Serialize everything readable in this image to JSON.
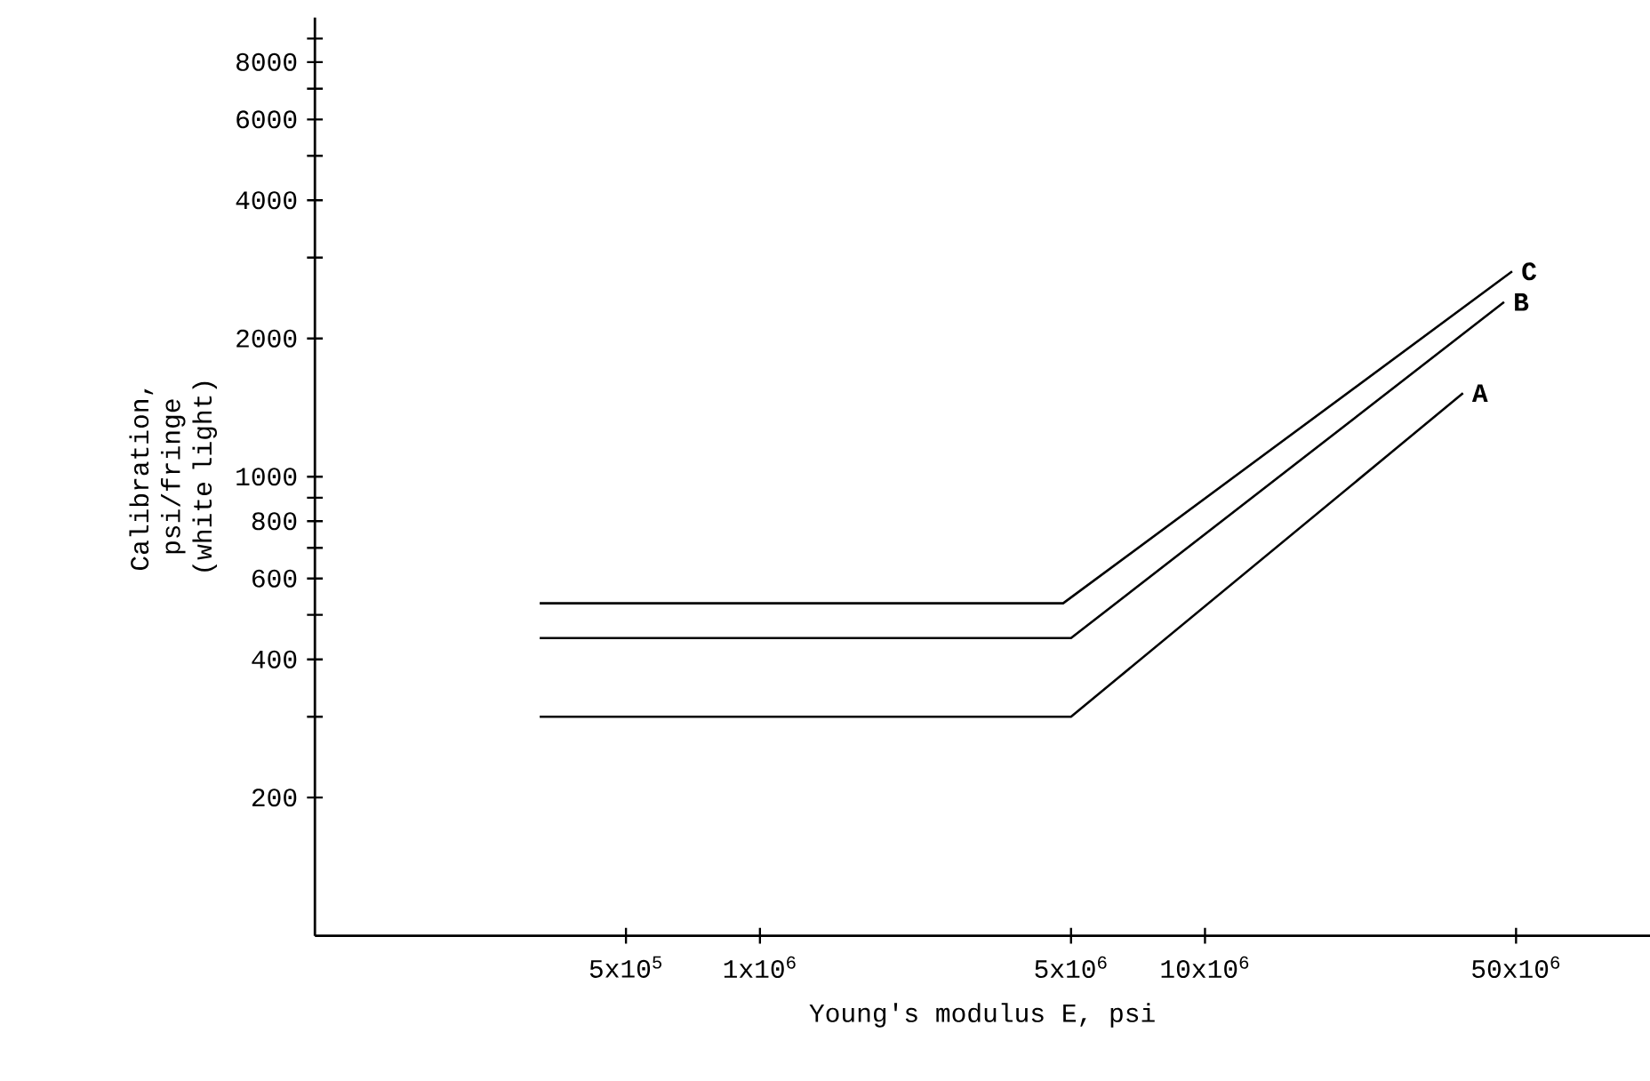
{
  "chart_data": {
    "type": "line",
    "xlabel": "Young's modulus E, psi",
    "ylabel": "Calibration, psi/fringe (white light)",
    "log": "xy",
    "xlim": [
      100000,
      100000000
    ],
    "ylim": [
      100,
      10000
    ],
    "xticks": [
      {
        "value": 500000,
        "label": "5x10$^{5}$"
      },
      {
        "value": 1000000,
        "label": "1x10$^{6}$"
      },
      {
        "value": 5000000,
        "label": "5x10$^{6}$"
      },
      {
        "value": 10000000,
        "label": "10x10$^{6}$"
      },
      {
        "value": 50000000,
        "label": "50x10$^{6}$"
      }
    ],
    "yticks": [
      200,
      {
        "value": 300,
        "label": null
      },
      400,
      {
        "value": 500,
        "label": null
      },
      600,
      {
        "value": 700,
        "label": null
      },
      800,
      {
        "value": 900,
        "label": null
      },
      1000,
      2000,
      {
        "value": 3000,
        "label": null
      },
      4000,
      {
        "value": 5000,
        "label": null
      },
      6000,
      {
        "value": 7000,
        "label": null
      },
      8000,
      {
        "value": 9000,
        "label": null
      }
    ],
    "series": [
      {
        "name": "C",
        "color": "#000000",
        "x": [
          320000,
          4800000,
          49000000
        ],
        "values": [
          530,
          530,
          2800
        ]
      },
      {
        "name": "B",
        "color": "#000000",
        "x": [
          320000,
          5000000,
          47000000
        ],
        "values": [
          445,
          445,
          2400
        ]
      },
      {
        "name": "A",
        "color": "#000000",
        "x": [
          320000,
          5000000,
          38000000
        ],
        "values": [
          300,
          300,
          1520
        ]
      }
    ]
  }
}
